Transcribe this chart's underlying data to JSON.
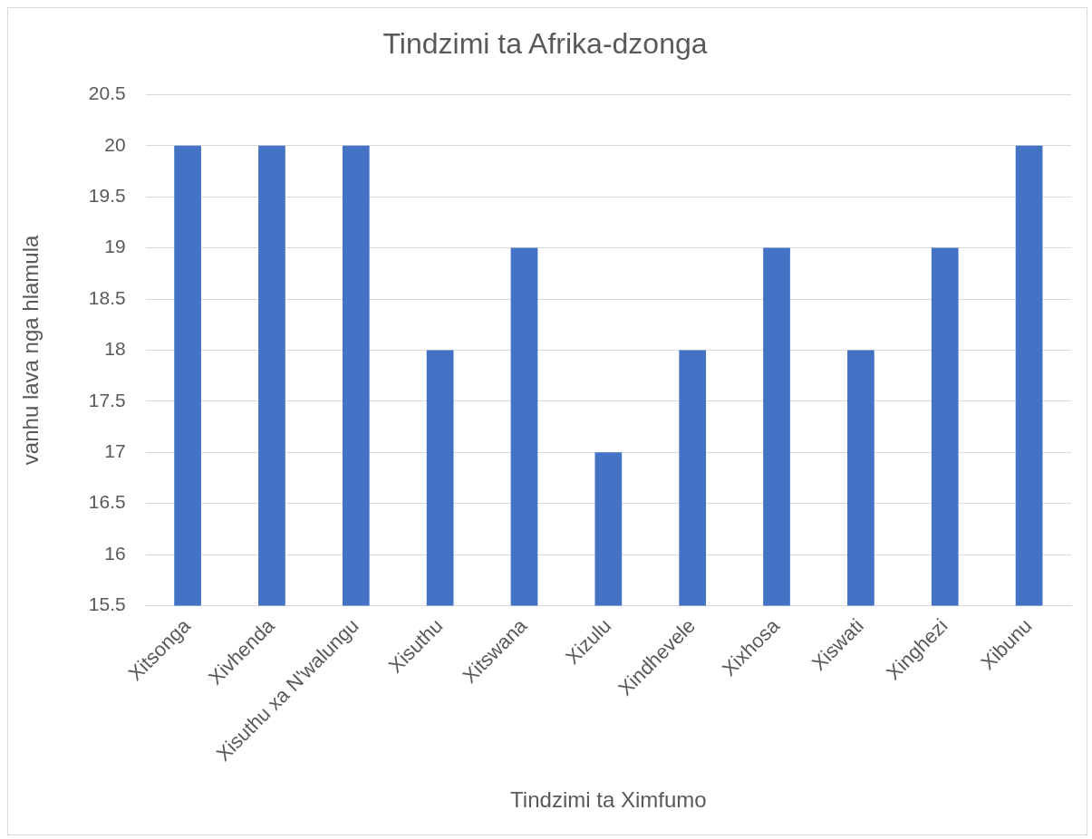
{
  "chart_data": {
    "type": "bar",
    "title": "Tindzimi ta Afrika-dzonga",
    "xlabel": "Tindzimi ta Ximfumo",
    "ylabel": "vanhu lava nga hlamula",
    "categories": [
      "Xitsonga",
      "Xivhenda",
      "Xisuthu xa N'walungu",
      "Xisuthu",
      "Xitswana",
      "Xizulu",
      "Xindhevele",
      "Xixhosa",
      "Xiswati",
      "Xinghezi",
      "Xibunu"
    ],
    "values": [
      20,
      20,
      20,
      18,
      19,
      17,
      18,
      19,
      18,
      19,
      20
    ],
    "color": "#4472c4",
    "ylim": [
      15.5,
      20.5
    ],
    "yticks": [
      15.5,
      16,
      16.5,
      17,
      17.5,
      18,
      18.5,
      19,
      19.5,
      20,
      20.5
    ],
    "grid": "y",
    "legend": false
  }
}
